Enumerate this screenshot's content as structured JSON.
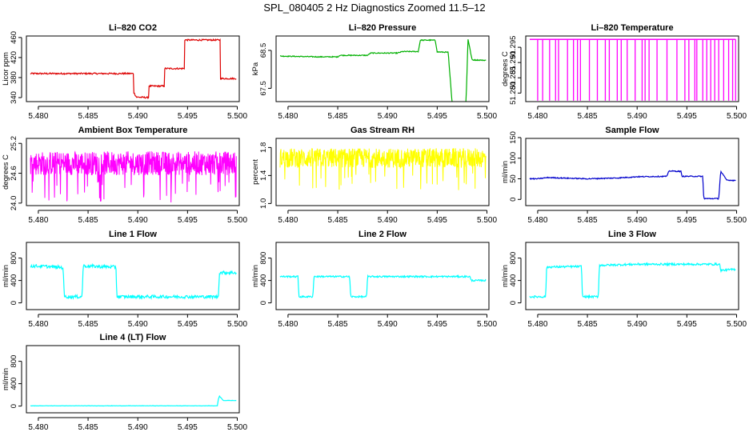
{
  "figure": {
    "title": "SPL_080405  2 Hz Diagnostics Zoomed 11.5–12"
  },
  "chart_data": [
    {
      "type": "line",
      "title": "Li–820 CO2",
      "ylabel": "Licor ppm",
      "color": "#dd0000",
      "xlim": [
        5.4788,
        5.5002
      ],
      "x_ticks": [
        "5.480",
        "5.485",
        "5.490",
        "5.495",
        "5.500"
      ],
      "x_tick_values": [
        5.48,
        5.485,
        5.49,
        5.495,
        5.5
      ],
      "ylim": [
        332,
        463
      ],
      "y_ticks": [
        "340",
        "380",
        "420",
        "460"
      ],
      "y_tick_values": [
        340,
        380,
        420,
        460
      ],
      "noise": 1.5,
      "series": [
        {
          "x": [
            5.4792,
            5.4896,
            5.4896,
            5.4899,
            5.4899,
            5.4911,
            5.4911,
            5.4927,
            5.4927,
            5.4947,
            5.4947,
            5.4983,
            5.4983,
            5.4999
          ],
          "values": [
            388,
            388,
            350,
            340,
            341,
            340,
            363,
            363,
            398,
            398,
            455,
            455,
            378,
            378
          ]
        }
      ]
    },
    {
      "type": "line",
      "title": "Li–820 Pressure",
      "ylabel": "kPa",
      "color": "#00b000",
      "xlim": [
        5.4788,
        5.5002
      ],
      "x_ticks": [
        "5.480",
        "5.485",
        "5.490",
        "5.495",
        "5.500"
      ],
      "x_tick_values": [
        5.48,
        5.485,
        5.49,
        5.495,
        5.5
      ],
      "ylim": [
        67.15,
        68.88
      ],
      "y_ticks": [
        "67.5",
        "68.5"
      ],
      "y_tick_values": [
        67.5,
        68.5
      ],
      "noise": 0.012,
      "series": [
        {
          "x": [
            5.4792,
            5.483,
            5.485,
            5.4852,
            5.488,
            5.4883,
            5.491,
            5.4915,
            5.4931,
            5.4933,
            5.4948,
            5.495,
            5.4961,
            5.4965,
            5.4966,
            5.497,
            5.4979,
            5.4981,
            5.4985,
            5.4999
          ],
          "values": [
            68.35,
            68.33,
            68.33,
            68.37,
            68.37,
            68.43,
            68.43,
            68.47,
            68.47,
            68.77,
            68.77,
            68.46,
            68.45,
            67.1,
            67.1,
            67.12,
            67.15,
            68.8,
            68.25,
            68.24
          ]
        }
      ]
    },
    {
      "type": "line",
      "title": "Li–820 Temperature",
      "ylabel": "degrees C",
      "color": "#ff00ff",
      "xlim": [
        5.4788,
        5.5002
      ],
      "x_ticks": [
        "5.480",
        "5.485",
        "5.490",
        "5.495",
        "5.500"
      ],
      "x_tick_values": [
        5.48,
        5.485,
        5.49,
        5.495,
        5.5
      ],
      "ylim": [
        51.2772,
        51.2987
      ],
      "y_ticks": [
        "51.280",
        "51.285",
        "51.290",
        "51.295"
      ],
      "y_tick_values": [
        51.28,
        51.285,
        51.29,
        51.295
      ],
      "level": 51.2976,
      "spikes_to": 51.2775,
      "spike_x": [
        5.48,
        5.4805,
        5.4812,
        5.4818,
        5.4821,
        5.483,
        5.4836,
        5.484,
        5.4843,
        5.4852,
        5.486,
        5.4868,
        5.4872,
        5.488,
        5.4884,
        5.489,
        5.4898,
        5.4905,
        5.4908,
        5.4912,
        5.492,
        5.493,
        5.494,
        5.4948,
        5.4952,
        5.4958,
        5.496,
        5.4966,
        5.497,
        5.4974,
        5.4978,
        5.4982,
        5.4987,
        5.4992,
        5.4996,
        5.4999
      ]
    },
    {
      "type": "line",
      "title": "Ambient Box Temperature",
      "ylabel": "degrees C",
      "color": "#ff00ff",
      "xlim": [
        5.4788,
        5.5002
      ],
      "x_ticks": [
        "5.480",
        "5.485",
        "5.490",
        "5.495",
        "5.500"
      ],
      "x_tick_values": [
        5.48,
        5.485,
        5.49,
        5.495,
        5.5
      ],
      "ylim": [
        23.95,
        25.3
      ],
      "y_ticks": [
        "24.0",
        "24.6",
        "25.2"
      ],
      "y_tick_values": [
        24.0,
        24.6,
        25.2
      ],
      "band": {
        "x": [
          5.4792,
          5.4999
        ],
        "center": 24.8,
        "spread": 0.24
      }
    },
    {
      "type": "line",
      "title": "Gas Stream RH",
      "ylabel": "percent",
      "color": "#ffff00",
      "xlim": [
        5.4788,
        5.5002
      ],
      "x_ticks": [
        "5.480",
        "5.485",
        "5.490",
        "5.495",
        "5.500"
      ],
      "x_tick_values": [
        5.48,
        5.485,
        5.49,
        5.495,
        5.5
      ],
      "ylim": [
        0.97,
        1.93
      ],
      "y_ticks": [
        "1.0",
        "1.4",
        "1.8"
      ],
      "y_tick_values": [
        1.0,
        1.4,
        1.8
      ],
      "band": {
        "x": [
          5.4792,
          5.4999
        ],
        "center": 1.65,
        "spread": 0.14
      }
    },
    {
      "type": "line",
      "title": "Sample Flow",
      "ylabel": "ml/min",
      "color": "#0000cc",
      "xlim": [
        5.4788,
        5.5002
      ],
      "x_ticks": [
        "5.480",
        "5.485",
        "5.490",
        "5.495",
        "5.500"
      ],
      "x_tick_values": [
        5.48,
        5.485,
        5.49,
        5.495,
        5.5
      ],
      "ylim": [
        -15,
        148
      ],
      "y_ticks": [
        "0",
        "50",
        "100",
        "150"
      ],
      "y_tick_values": [
        0,
        50,
        100,
        150
      ],
      "noise": 1.2,
      "series": [
        {
          "x": [
            5.4792,
            5.48,
            5.481,
            5.485,
            5.488,
            5.49,
            5.493,
            5.4932,
            5.4944,
            5.4945,
            5.4966,
            5.4967,
            5.4982,
            5.4984,
            5.499,
            5.4999
          ],
          "values": [
            50,
            50,
            53,
            50,
            52,
            55,
            56,
            69,
            68,
            56,
            56,
            2,
            2,
            68,
            47,
            46
          ]
        }
      ]
    },
    {
      "type": "line",
      "title": "Line 1 Flow",
      "ylabel": "ml/min",
      "color": "#00ffff",
      "xlim": [
        5.4788,
        5.5002
      ],
      "x_ticks": [
        "5.480",
        "5.485",
        "5.490",
        "5.495",
        "5.500"
      ],
      "x_tick_values": [
        5.48,
        5.485,
        5.49,
        5.495,
        5.5
      ],
      "ylim": [
        -120,
        1080
      ],
      "y_ticks": [
        "0",
        "400",
        "800"
      ],
      "y_tick_values": [
        0,
        400,
        800
      ],
      "noise": 28,
      "series": [
        {
          "x": [
            5.4792,
            5.4808,
            5.4825,
            5.4826,
            5.4844,
            5.4845,
            5.486,
            5.4878,
            5.4879,
            5.4981,
            5.4982,
            5.4999
          ],
          "values": [
            660,
            650,
            630,
            110,
            110,
            660,
            650,
            640,
            110,
            110,
            540,
            540
          ]
        }
      ]
    },
    {
      "type": "line",
      "title": "Line 2 Flow",
      "ylabel": "ml/min",
      "color": "#00ffff",
      "xlim": [
        5.4788,
        5.5002
      ],
      "x_ticks": [
        "5.480",
        "5.485",
        "5.490",
        "5.495",
        "5.500"
      ],
      "x_tick_values": [
        5.48,
        5.485,
        5.49,
        5.495,
        5.5
      ],
      "ylim": [
        -120,
        1080
      ],
      "y_ticks": [
        "0",
        "400",
        "800"
      ],
      "y_tick_values": [
        0,
        400,
        800
      ],
      "noise": 14,
      "series": [
        {
          "x": [
            5.4792,
            5.481,
            5.4811,
            5.4825,
            5.4826,
            5.4862,
            5.4863,
            5.4879,
            5.488,
            5.4983,
            5.4984,
            5.4999
          ],
          "values": [
            470,
            470,
            110,
            110,
            470,
            470,
            110,
            110,
            470,
            470,
            400,
            400
          ]
        }
      ]
    },
    {
      "type": "line",
      "title": "Line 3 Flow",
      "ylabel": "ml/min",
      "color": "#00ffff",
      "xlim": [
        5.4788,
        5.5002
      ],
      "x_ticks": [
        "5.480",
        "5.485",
        "5.490",
        "5.495",
        "5.500"
      ],
      "x_tick_values": [
        5.48,
        5.485,
        5.49,
        5.495,
        5.5
      ],
      "ylim": [
        -120,
        1080
      ],
      "y_ticks": [
        "0",
        "400",
        "800"
      ],
      "y_tick_values": [
        0,
        400,
        800
      ],
      "noise": 18,
      "series": [
        {
          "x": [
            5.4792,
            5.4808,
            5.4809,
            5.4844,
            5.4845,
            5.4861,
            5.4862,
            5.49,
            5.494,
            5.4983,
            5.4984,
            5.4999
          ],
          "values": [
            110,
            110,
            640,
            650,
            110,
            110,
            670,
            690,
            690,
            690,
            580,
            600
          ]
        }
      ]
    },
    {
      "type": "line",
      "title": "Line 4 (LT) Flow",
      "ylabel": "ml/min",
      "color": "#00ffff",
      "xlim": [
        5.4788,
        5.5002
      ],
      "x_ticks": [
        "5.480",
        "5.485",
        "5.490",
        "5.495",
        "5.500"
      ],
      "x_tick_values": [
        5.48,
        5.485,
        5.49,
        5.495,
        5.5
      ],
      "ylim": [
        -120,
        1080
      ],
      "y_ticks": [
        "0",
        "400",
        "800"
      ],
      "y_tick_values": [
        0,
        400,
        800
      ],
      "noise": 3,
      "series": [
        {
          "x": [
            5.4792,
            5.498,
            5.4981,
            5.4982,
            5.4986,
            5.4999
          ],
          "values": [
            5,
            5,
            120,
            180,
            100,
            100
          ]
        }
      ]
    }
  ]
}
